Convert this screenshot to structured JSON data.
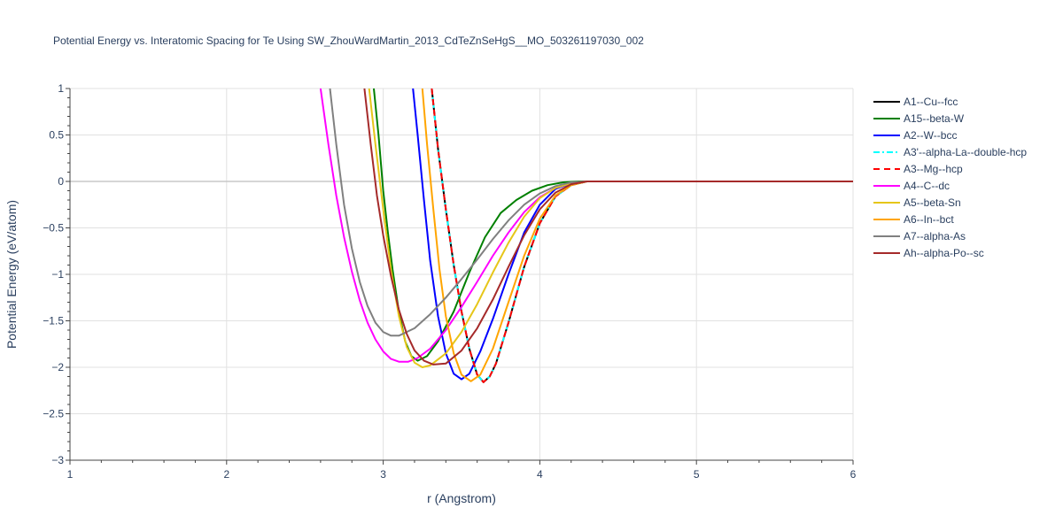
{
  "chart_data": {
    "type": "line",
    "title": "Potential Energy vs. Interatomic Spacing for Te Using SW_ZhouWardMartin_2013_CdTeZnSeHgS__MO_503261197030_002",
    "xlabel": "r (Angstrom)",
    "ylabel": "Potential Energy (eV/atom)",
    "xlim": [
      1,
      6
    ],
    "ylim": [
      -3,
      1
    ],
    "x_ticks": [
      1,
      2,
      3,
      4,
      5,
      6
    ],
    "x_tick_labels": [
      "1",
      "2",
      "3",
      "4",
      "5",
      "6"
    ],
    "y_ticks": [
      1,
      0.5,
      0,
      -0.5,
      -1,
      -1.5,
      -2,
      -2.5,
      -3
    ],
    "y_tick_labels": [
      "1",
      "0.5",
      "0",
      "−0.5",
      "−1",
      "−1.5",
      "−2",
      "−2.5",
      "−3"
    ],
    "grid": true,
    "legend_position": "right",
    "series": [
      {
        "name": "A1--Cu--fcc",
        "color": "#000000",
        "dash": "solid",
        "points": [
          [
            3.31,
            1.0
          ],
          [
            3.35,
            0.35
          ],
          [
            3.4,
            -0.3
          ],
          [
            3.45,
            -0.9
          ],
          [
            3.5,
            -1.4
          ],
          [
            3.55,
            -1.8
          ],
          [
            3.6,
            -2.08
          ],
          [
            3.64,
            -2.16
          ],
          [
            3.68,
            -2.1
          ],
          [
            3.72,
            -1.96
          ],
          [
            3.8,
            -1.52
          ],
          [
            3.9,
            -0.92
          ],
          [
            4.0,
            -0.45
          ],
          [
            4.1,
            -0.16
          ],
          [
            4.2,
            -0.04
          ],
          [
            4.3,
            0.0
          ],
          [
            4.4,
            0.0
          ],
          [
            5.0,
            0.0
          ],
          [
            6.0,
            0.0
          ]
        ]
      },
      {
        "name": "A15--beta-W",
        "color": "#008000",
        "dash": "solid",
        "points": [
          [
            2.94,
            1.0
          ],
          [
            2.97,
            0.5
          ],
          [
            3.0,
            -0.1
          ],
          [
            3.03,
            -0.55
          ],
          [
            3.06,
            -0.95
          ],
          [
            3.1,
            -1.4
          ],
          [
            3.14,
            -1.72
          ],
          [
            3.18,
            -1.88
          ],
          [
            3.22,
            -1.93
          ],
          [
            3.28,
            -1.88
          ],
          [
            3.35,
            -1.72
          ],
          [
            3.45,
            -1.4
          ],
          [
            3.55,
            -0.98
          ],
          [
            3.65,
            -0.6
          ],
          [
            3.75,
            -0.34
          ],
          [
            3.85,
            -0.2
          ],
          [
            3.95,
            -0.1
          ],
          [
            4.05,
            -0.04
          ],
          [
            4.15,
            -0.01
          ],
          [
            4.25,
            0.0
          ],
          [
            5.0,
            0.0
          ],
          [
            6.0,
            0.0
          ]
        ]
      },
      {
        "name": "A2--W--bcc",
        "color": "#0000ff",
        "dash": "solid",
        "points": [
          [
            3.19,
            1.0
          ],
          [
            3.22,
            0.5
          ],
          [
            3.26,
            -0.2
          ],
          [
            3.3,
            -0.85
          ],
          [
            3.35,
            -1.45
          ],
          [
            3.4,
            -1.85
          ],
          [
            3.45,
            -2.07
          ],
          [
            3.5,
            -2.13
          ],
          [
            3.55,
            -2.07
          ],
          [
            3.62,
            -1.83
          ],
          [
            3.7,
            -1.48
          ],
          [
            3.8,
            -1.0
          ],
          [
            3.9,
            -0.55
          ],
          [
            4.0,
            -0.25
          ],
          [
            4.1,
            -0.08
          ],
          [
            4.2,
            -0.02
          ],
          [
            4.3,
            0.0
          ],
          [
            5.0,
            0.0
          ],
          [
            6.0,
            0.0
          ]
        ]
      },
      {
        "name": "A3'--alpha-La--double-hcp",
        "color": "#00ffff",
        "dash": "dashdot",
        "points": [
          [
            3.31,
            1.0
          ],
          [
            3.35,
            0.35
          ],
          [
            3.4,
            -0.3
          ],
          [
            3.45,
            -0.9
          ],
          [
            3.5,
            -1.4
          ],
          [
            3.55,
            -1.8
          ],
          [
            3.6,
            -2.08
          ],
          [
            3.64,
            -2.16
          ],
          [
            3.68,
            -2.1
          ],
          [
            3.72,
            -1.96
          ],
          [
            3.8,
            -1.52
          ],
          [
            3.9,
            -0.92
          ],
          [
            4.0,
            -0.45
          ],
          [
            4.1,
            -0.16
          ],
          [
            4.2,
            -0.04
          ],
          [
            4.3,
            0.0
          ],
          [
            4.4,
            0.0
          ],
          [
            5.0,
            0.0
          ],
          [
            6.0,
            0.0
          ]
        ]
      },
      {
        "name": "A3--Mg--hcp",
        "color": "#ff0000",
        "dash": "dash",
        "points": [
          [
            3.31,
            1.0
          ],
          [
            3.35,
            0.35
          ],
          [
            3.4,
            -0.3
          ],
          [
            3.45,
            -0.9
          ],
          [
            3.5,
            -1.4
          ],
          [
            3.55,
            -1.8
          ],
          [
            3.6,
            -2.08
          ],
          [
            3.64,
            -2.16
          ],
          [
            3.68,
            -2.1
          ],
          [
            3.72,
            -1.96
          ],
          [
            3.8,
            -1.52
          ],
          [
            3.9,
            -0.92
          ],
          [
            4.0,
            -0.45
          ],
          [
            4.1,
            -0.16
          ],
          [
            4.2,
            -0.04
          ],
          [
            4.3,
            0.0
          ],
          [
            4.4,
            0.0
          ],
          [
            5.0,
            0.0
          ],
          [
            6.0,
            0.0
          ]
        ]
      },
      {
        "name": "A4--C--dc",
        "color": "#ff00ff",
        "dash": "solid",
        "points": [
          [
            2.6,
            1.0
          ],
          [
            2.65,
            0.4
          ],
          [
            2.7,
            -0.15
          ],
          [
            2.75,
            -0.6
          ],
          [
            2.8,
            -0.97
          ],
          [
            2.85,
            -1.28
          ],
          [
            2.9,
            -1.52
          ],
          [
            2.95,
            -1.7
          ],
          [
            3.0,
            -1.83
          ],
          [
            3.05,
            -1.91
          ],
          [
            3.1,
            -1.94
          ],
          [
            3.16,
            -1.94
          ],
          [
            3.22,
            -1.9
          ],
          [
            3.3,
            -1.8
          ],
          [
            3.4,
            -1.6
          ],
          [
            3.5,
            -1.35
          ],
          [
            3.6,
            -1.08
          ],
          [
            3.7,
            -0.8
          ],
          [
            3.8,
            -0.55
          ],
          [
            3.9,
            -0.33
          ],
          [
            4.0,
            -0.17
          ],
          [
            4.1,
            -0.07
          ],
          [
            4.2,
            -0.02
          ],
          [
            4.3,
            0.0
          ],
          [
            5.0,
            0.0
          ],
          [
            6.0,
            0.0
          ]
        ]
      },
      {
        "name": "A5--beta-Sn",
        "color": "#e6c619",
        "dash": "solid",
        "points": [
          [
            2.91,
            1.0
          ],
          [
            2.95,
            0.4
          ],
          [
            3.0,
            -0.3
          ],
          [
            3.05,
            -0.95
          ],
          [
            3.1,
            -1.45
          ],
          [
            3.15,
            -1.78
          ],
          [
            3.2,
            -1.95
          ],
          [
            3.25,
            -2.0
          ],
          [
            3.3,
            -1.98
          ],
          [
            3.4,
            -1.85
          ],
          [
            3.5,
            -1.62
          ],
          [
            3.6,
            -1.32
          ],
          [
            3.7,
            -0.98
          ],
          [
            3.8,
            -0.66
          ],
          [
            3.9,
            -0.38
          ],
          [
            4.0,
            -0.18
          ],
          [
            4.1,
            -0.07
          ],
          [
            4.2,
            -0.02
          ],
          [
            4.3,
            0.0
          ],
          [
            5.0,
            0.0
          ],
          [
            6.0,
            0.0
          ]
        ]
      },
      {
        "name": "A6--In--bct",
        "color": "#ffa500",
        "dash": "solid",
        "points": [
          [
            3.25,
            1.0
          ],
          [
            3.28,
            0.4
          ],
          [
            3.32,
            -0.3
          ],
          [
            3.36,
            -0.95
          ],
          [
            3.4,
            -1.45
          ],
          [
            3.45,
            -1.85
          ],
          [
            3.5,
            -2.08
          ],
          [
            3.56,
            -2.15
          ],
          [
            3.62,
            -2.08
          ],
          [
            3.7,
            -1.8
          ],
          [
            3.8,
            -1.3
          ],
          [
            3.9,
            -0.8
          ],
          [
            4.0,
            -0.4
          ],
          [
            4.1,
            -0.15
          ],
          [
            4.2,
            -0.04
          ],
          [
            4.3,
            0.0
          ],
          [
            5.0,
            0.0
          ],
          [
            6.0,
            0.0
          ]
        ]
      },
      {
        "name": "A7--alpha-As",
        "color": "#808080",
        "dash": "solid",
        "points": [
          [
            2.66,
            1.0
          ],
          [
            2.7,
            0.4
          ],
          [
            2.75,
            -0.25
          ],
          [
            2.8,
            -0.72
          ],
          [
            2.85,
            -1.08
          ],
          [
            2.9,
            -1.34
          ],
          [
            2.95,
            -1.52
          ],
          [
            3.0,
            -1.62
          ],
          [
            3.05,
            -1.66
          ],
          [
            3.1,
            -1.66
          ],
          [
            3.2,
            -1.58
          ],
          [
            3.3,
            -1.43
          ],
          [
            3.4,
            -1.25
          ],
          [
            3.5,
            -1.05
          ],
          [
            3.6,
            -0.84
          ],
          [
            3.7,
            -0.62
          ],
          [
            3.8,
            -0.42
          ],
          [
            3.9,
            -0.25
          ],
          [
            4.0,
            -0.13
          ],
          [
            4.1,
            -0.05
          ],
          [
            4.2,
            -0.01
          ],
          [
            4.3,
            0.0
          ],
          [
            5.0,
            0.0
          ],
          [
            6.0,
            0.0
          ]
        ]
      },
      {
        "name": "Ah--alpha-Po--sc",
        "color": "#a52a2a",
        "dash": "solid",
        "points": [
          [
            2.88,
            1.0
          ],
          [
            2.92,
            0.4
          ],
          [
            2.96,
            -0.15
          ],
          [
            3.0,
            -0.58
          ],
          [
            3.05,
            -1.02
          ],
          [
            3.1,
            -1.38
          ],
          [
            3.15,
            -1.64
          ],
          [
            3.2,
            -1.82
          ],
          [
            3.26,
            -1.93
          ],
          [
            3.32,
            -1.97
          ],
          [
            3.4,
            -1.96
          ],
          [
            3.5,
            -1.82
          ],
          [
            3.6,
            -1.58
          ],
          [
            3.7,
            -1.27
          ],
          [
            3.8,
            -0.92
          ],
          [
            3.9,
            -0.58
          ],
          [
            4.0,
            -0.3
          ],
          [
            4.1,
            -0.12
          ],
          [
            4.2,
            -0.03
          ],
          [
            4.3,
            0.0
          ],
          [
            5.0,
            0.0
          ],
          [
            6.0,
            0.0
          ]
        ]
      }
    ]
  }
}
